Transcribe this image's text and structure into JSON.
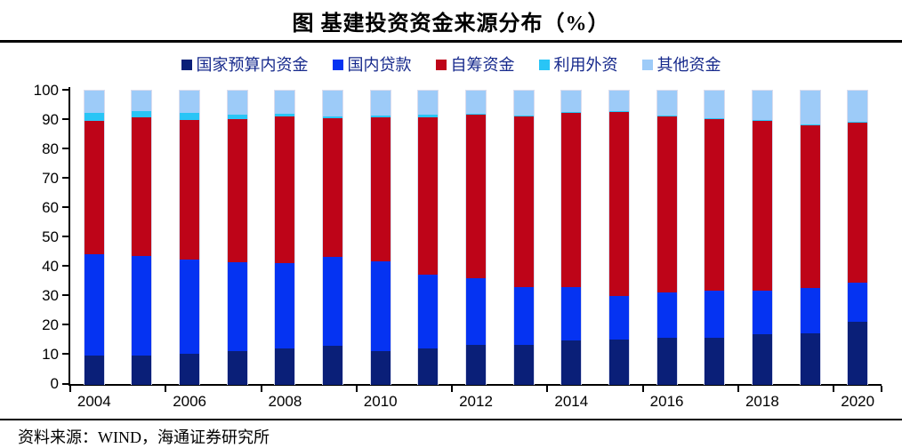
{
  "title": "图 基建投资资金来源分布（%）",
  "source": "资料来源：WIND，海通证券研究所",
  "colors": {
    "budget_funds": "#0a1f78",
    "domestic_loans": "#0533f2",
    "self_raised": "#be0418",
    "foreign_capital": "#29c5f6",
    "other_funds": "#9dcbf8",
    "legend_text": "#16298c",
    "axis": "#000000"
  },
  "chart_data": {
    "type": "bar",
    "stacked": true,
    "title": "图 基建投资资金来源分布（%）",
    "xlabel": "",
    "ylabel": "",
    "ylim": [
      0,
      100
    ],
    "ytick_step": 10,
    "ytick_labels": [
      "0",
      "10",
      "20",
      "30",
      "40",
      "50",
      "60",
      "70",
      "80",
      "90",
      "100"
    ],
    "grid": false,
    "legend_position": "top",
    "categories": [
      "2004",
      "2005",
      "2006",
      "2007",
      "2008",
      "2009",
      "2010",
      "2011",
      "2012",
      "2013",
      "2014",
      "2015",
      "2016",
      "2017",
      "2018",
      "2019",
      "2020"
    ],
    "x_axis_labels": [
      "2004",
      "2006",
      "2008",
      "2010",
      "2012",
      "2014",
      "2016",
      "2018",
      "2020"
    ],
    "series": [
      {
        "name": "国家预算内资金",
        "color": "#0a1f78",
        "values": [
          9.8,
          9.9,
          10.3,
          11.3,
          12.3,
          13.1,
          11.5,
          12.3,
          13.6,
          13.4,
          14.9,
          15.3,
          15.9,
          15.9,
          17.2,
          17.4,
          21.2
        ]
      },
      {
        "name": "国内贷款",
        "color": "#0533f2",
        "values": [
          34.5,
          33.7,
          32.1,
          30.3,
          29.1,
          30.3,
          30.4,
          25.2,
          22.5,
          19.7,
          18.1,
          14.8,
          15.4,
          15.9,
          14.8,
          15.4,
          13.3
        ]
      },
      {
        "name": "自筹资金",
        "color": "#be0418",
        "values": [
          45.5,
          47.4,
          47.6,
          48.7,
          49.7,
          47.1,
          48.9,
          53.5,
          55.7,
          58.2,
          59.5,
          62.9,
          60.0,
          58.7,
          58.0,
          55.7,
          54.8
        ]
      },
      {
        "name": "利用外资",
        "color": "#29c5f6",
        "values": [
          2.6,
          2.0,
          2.3,
          1.5,
          0.9,
          0.8,
          0.7,
          0.8,
          0.3,
          0.3,
          0.2,
          0.1,
          0.2,
          0.1,
          0.1,
          0.1,
          0.1
        ]
      },
      {
        "name": "其他资金",
        "color": "#9dcbf8",
        "values": [
          7.6,
          7.0,
          7.7,
          8.2,
          8.0,
          8.7,
          8.5,
          8.2,
          7.9,
          8.4,
          7.3,
          6.9,
          8.5,
          9.4,
          9.9,
          11.4,
          10.6
        ]
      }
    ]
  }
}
